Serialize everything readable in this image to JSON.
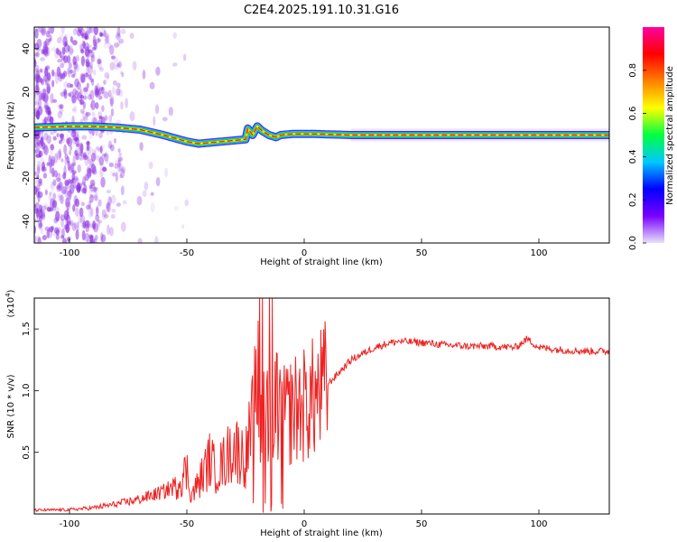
{
  "title": "C2E4.2025.191.10.31.G16",
  "colors": {
    "snr_line": "#ee2222",
    "ridge_core": "#ff2200",
    "ridge_edge": "#00d060",
    "noise": "#8a2be2",
    "colorbar_stops": [
      "#e8e2f8",
      "#7a00ff",
      "#0000ff",
      "#00c8ff",
      "#00ff40",
      "#ffff00",
      "#ff8000",
      "#ff0000",
      "#ff00a0"
    ]
  },
  "chart_data": [
    {
      "type": "heatmap",
      "xlabel": "Height of straight line (km)",
      "ylabel": "Frequency (Hz)",
      "xlim": [
        -115,
        130
      ],
      "ylim": [
        -50,
        50
      ],
      "x_ticks": [
        -100,
        -50,
        0,
        50,
        100
      ],
      "x_tick_labels": [
        "-100",
        "-50",
        "0",
        "50",
        "100"
      ],
      "y_ticks": [
        -40,
        -20,
        0,
        20,
        40
      ],
      "y_tick_labels": [
        "-40",
        "-20",
        "0",
        "20",
        "40"
      ],
      "colorbar": {
        "label": "Normalized spectral amplitude",
        "range": [
          0,
          1
        ],
        "ticks": [
          0.0,
          0.2,
          0.4,
          0.6,
          0.8
        ],
        "tick_labels": [
          "0.0",
          "0.2",
          "0.4",
          "0.6",
          "0.8"
        ]
      },
      "ridge": {
        "description_points_x": [
          -115,
          -100,
          -90,
          -80,
          -70,
          -60,
          -50,
          -45,
          -40,
          -35,
          -30,
          -25,
          -24,
          -22,
          -20,
          -18,
          -15,
          -12,
          -10,
          -5,
          0,
          5,
          10,
          15,
          20,
          40,
          60,
          80,
          100,
          130
        ],
        "frequency_hz": [
          3.5,
          4,
          4,
          3.5,
          2.5,
          0,
          -3,
          -4,
          -3.5,
          -3,
          -2.5,
          -2,
          3,
          0,
          4,
          2,
          0,
          -1,
          0,
          0.5,
          0.5,
          0.5,
          0.3,
          0.2,
          0,
          0,
          0,
          0,
          0,
          0
        ]
      }
    },
    {
      "type": "line",
      "xlabel": "Height of straight line (km)",
      "ylabel": "SNR (10 * v/v)",
      "y_scale_note": "(x10",
      "y_scale_exp": "4",
      "xlim": [
        -115,
        130
      ],
      "ylim": [
        0,
        17500
      ],
      "x_ticks": [
        -100,
        -50,
        0,
        50,
        100
      ],
      "x_tick_labels": [
        "-100",
        "-50",
        "0",
        "50",
        "100"
      ],
      "y_ticks": [
        5000,
        10000,
        15000
      ],
      "y_tick_labels": [
        "0.5",
        "1.0",
        "1.5"
      ],
      "envelope": {
        "x": [
          -115,
          -100,
          -90,
          -80,
          -70,
          -60,
          -55,
          -50,
          -48,
          -45,
          -40,
          -38,
          -35,
          -30,
          -25,
          -22,
          -20,
          -18,
          -16,
          -14,
          -12,
          -10,
          -5,
          0,
          5,
          10,
          15,
          20,
          25,
          30,
          35,
          40,
          50,
          60,
          70,
          80,
          90,
          95,
          100,
          110,
          120,
          130
        ],
        "snr": [
          300,
          350,
          500,
          800,
          1200,
          1800,
          2300,
          3500,
          1500,
          2500,
          4500,
          3500,
          4000,
          5500,
          4500,
          7500,
          11000,
          8000,
          10500,
          6000,
          9000,
          7500,
          8500,
          8800,
          9500,
          10500,
          11500,
          12500,
          13000,
          13500,
          13800,
          14000,
          13900,
          13700,
          13600,
          13600,
          13500,
          14200,
          13500,
          13300,
          13200,
          13200
        ]
      }
    }
  ],
  "labels": {
    "top_xlabel": "Height of straight line (km)",
    "top_ylabel": "Frequency (Hz)",
    "bottom_xlabel": "Height of straight line (km)",
    "bottom_ylabel": "SNR (10 * v/v)",
    "cb_label": "Normalized spectral amplitude",
    "scale_prefix": "(x10",
    "scale_exp": "4",
    "scale_suffix": ")"
  }
}
